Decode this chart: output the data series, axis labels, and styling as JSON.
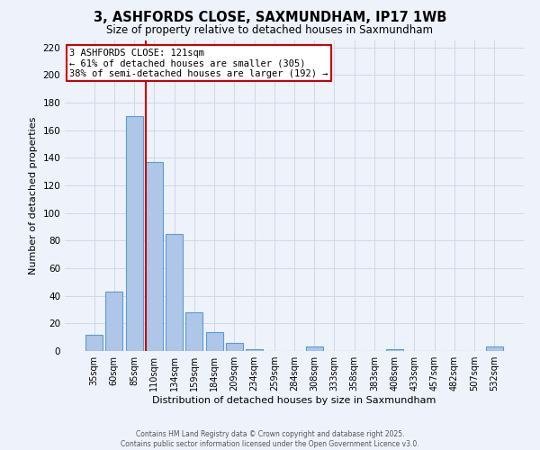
{
  "title": "3, ASHFORDS CLOSE, SAXMUNDHAM, IP17 1WB",
  "subtitle": "Size of property relative to detached houses in Saxmundham",
  "xlabel": "Distribution of detached houses by size in Saxmundham",
  "ylabel": "Number of detached properties",
  "bar_labels": [
    "35sqm",
    "60sqm",
    "85sqm",
    "110sqm",
    "134sqm",
    "159sqm",
    "184sqm",
    "209sqm",
    "234sqm",
    "259sqm",
    "284sqm",
    "308sqm",
    "333sqm",
    "358sqm",
    "383sqm",
    "408sqm",
    "433sqm",
    "457sqm",
    "482sqm",
    "507sqm",
    "532sqm"
  ],
  "bar_values": [
    12,
    43,
    170,
    137,
    85,
    28,
    14,
    6,
    1,
    0,
    0,
    3,
    0,
    0,
    0,
    1,
    0,
    0,
    0,
    0,
    3
  ],
  "bar_color": "#aec6e8",
  "bar_edge_color": "#5b9bd5",
  "grid_color": "#d0d8e8",
  "background_color": "#eef2fa",
  "vline_bar_index": 3,
  "vline_color": "#cc0000",
  "annotation_title": "3 ASHFORDS CLOSE: 121sqm",
  "annotation_line1": "← 61% of detached houses are smaller (305)",
  "annotation_line2": "38% of semi-detached houses are larger (192) →",
  "annotation_box_color": "#ffffff",
  "annotation_box_edge": "#cc0000",
  "ylim": [
    0,
    225
  ],
  "yticks": [
    0,
    20,
    40,
    60,
    80,
    100,
    120,
    140,
    160,
    180,
    200,
    220
  ],
  "footer1": "Contains HM Land Registry data © Crown copyright and database right 2025.",
  "footer2": "Contains public sector information licensed under the Open Government Licence v3.0."
}
